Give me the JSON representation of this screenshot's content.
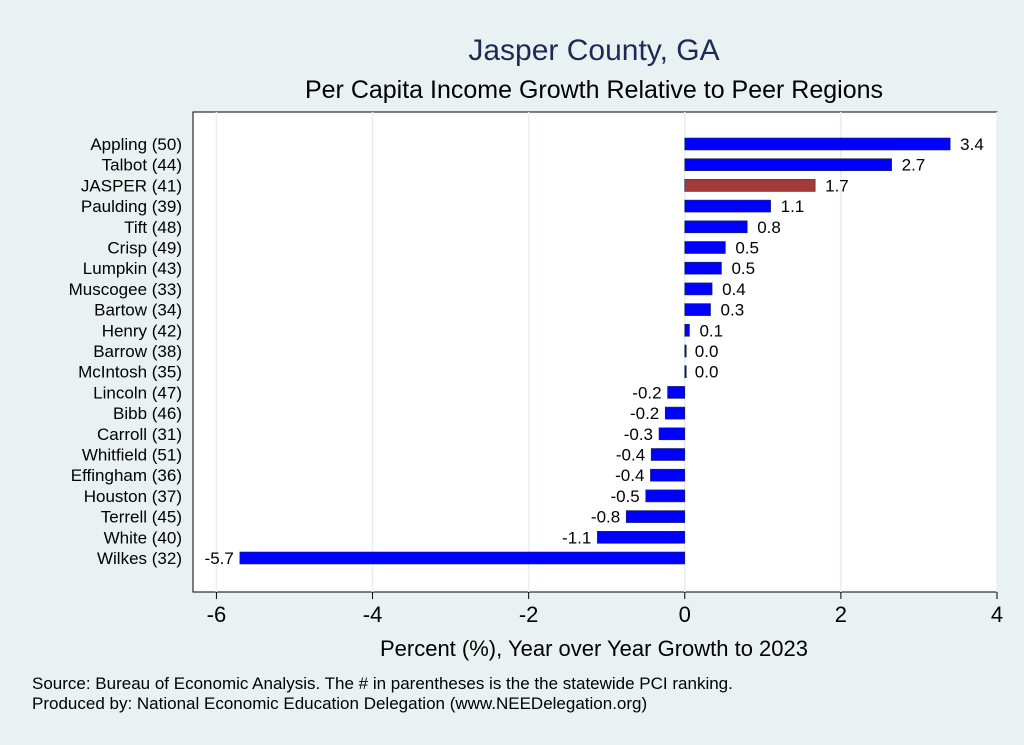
{
  "colors": {
    "background": "#eaf1f3",
    "plot_background": "#ffffff",
    "bar": "#0000ff",
    "highlight_bar": "#a23a3a",
    "bar_outline": "#1a2b57",
    "title": "#1a2b57",
    "grid": "#e6eef0"
  },
  "chart_data": {
    "type": "bar",
    "orientation": "horizontal",
    "title": "Jasper County, GA",
    "subtitle": "Per Capita Income Growth Relative to Peer Regions",
    "xlabel": "Percent (%), Year over Year Growth to 2023",
    "ylabel": "",
    "xlim": [
      -6.3,
      4.0
    ],
    "xticks": [
      -6,
      -4,
      -2,
      0,
      2,
      4
    ],
    "xtick_labels": [
      "-6",
      "-4",
      "-2",
      "0",
      "2",
      "4"
    ],
    "grid": true,
    "highlight": "JASPER (41)",
    "categories": [
      "Appling (50)",
      "Talbot (44)",
      "JASPER (41)",
      "Paulding (39)",
      "Tift (48)",
      "Crisp (49)",
      "Lumpkin (43)",
      "Muscogee (33)",
      "Bartow (34)",
      "Henry (42)",
      "Barrow (38)",
      "McIntosh (35)",
      "Lincoln (47)",
      "Bibb (46)",
      "Carroll (31)",
      "Whitfield (51)",
      "Effingham (36)",
      "Houston (37)",
      "Terrell (45)",
      "White (40)",
      "Wilkes (32)"
    ],
    "values": [
      3.4,
      2.65,
      1.67,
      1.1,
      0.8,
      0.52,
      0.47,
      0.35,
      0.33,
      0.06,
      0.0,
      0.0,
      -0.22,
      -0.25,
      -0.33,
      -0.43,
      -0.44,
      -0.5,
      -0.75,
      -1.12,
      -5.7
    ],
    "value_labels": [
      "3.4",
      "2.7",
      "1.7",
      "1.1",
      "0.8",
      "0.5",
      "0.5",
      "0.4",
      "0.3",
      "0.1",
      "0.0",
      "0.0",
      "-0.2",
      "-0.2",
      "-0.3",
      "-0.4",
      "-0.4",
      "-0.5",
      "-0.8",
      "-1.1",
      "-5.7"
    ]
  },
  "notes": {
    "source": "Source: Bureau of Economic Analysis. The # in parentheses is the the statewide PCI ranking.",
    "produced_by": "Produced by: National Economic Education Delegation (www.NEEDelegation.org)"
  }
}
